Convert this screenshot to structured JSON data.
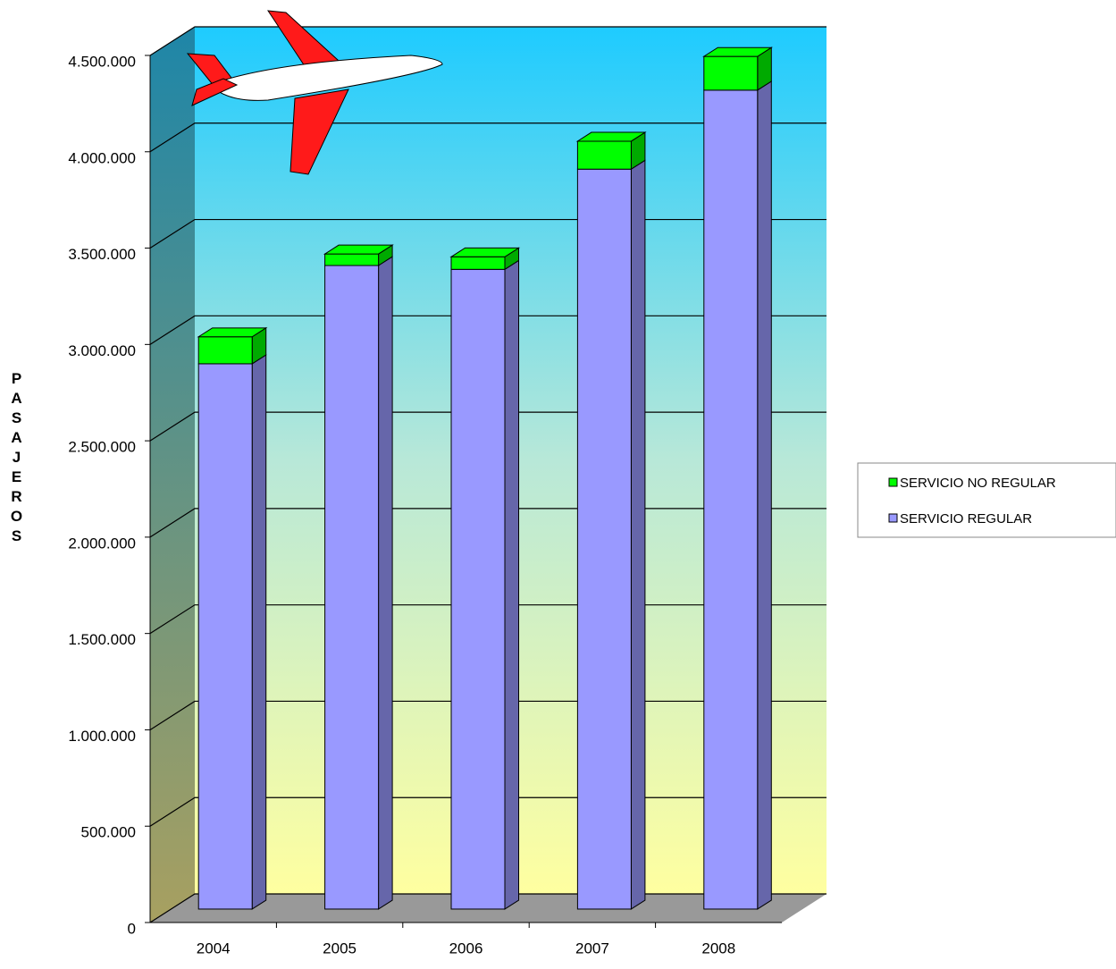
{
  "chart_data": {
    "type": "bar3d_stacked",
    "y_label": "PASAJEROS",
    "categories": [
      "2004",
      "2005",
      "2006",
      "2007",
      "2008"
    ],
    "series": [
      {
        "name": "SERVICIO REGULAR",
        "color": "#9999ff",
        "side_color": "#6666aa",
        "values": [
          2830000,
          3340000,
          3320000,
          3840000,
          4250000
        ]
      },
      {
        "name": "SERVICIO NO REGULAR",
        "color": "#00ff00",
        "side_color": "#00aa00",
        "values": [
          140000,
          60000,
          65000,
          145000,
          175000
        ]
      }
    ],
    "ylim": [
      0,
      4500000
    ],
    "yticks": [
      0,
      {
        "value": 500000,
        "label": "500.000"
      },
      {
        "value": 1000000,
        "label": "1.000.000"
      },
      {
        "value": 1500000,
        "label": "1.500.000"
      },
      {
        "value": 2000000,
        "label": "2.000.000"
      },
      {
        "value": 2500000,
        "label": "2.500.000"
      },
      {
        "value": 3000000,
        "label": "3.000.000"
      },
      {
        "value": 3500000,
        "label": "3.500.000"
      },
      {
        "value": 4000000,
        "label": "4.000.000"
      },
      {
        "value": 4500000,
        "label": "4.500.000"
      }
    ],
    "grid": true
  }
}
